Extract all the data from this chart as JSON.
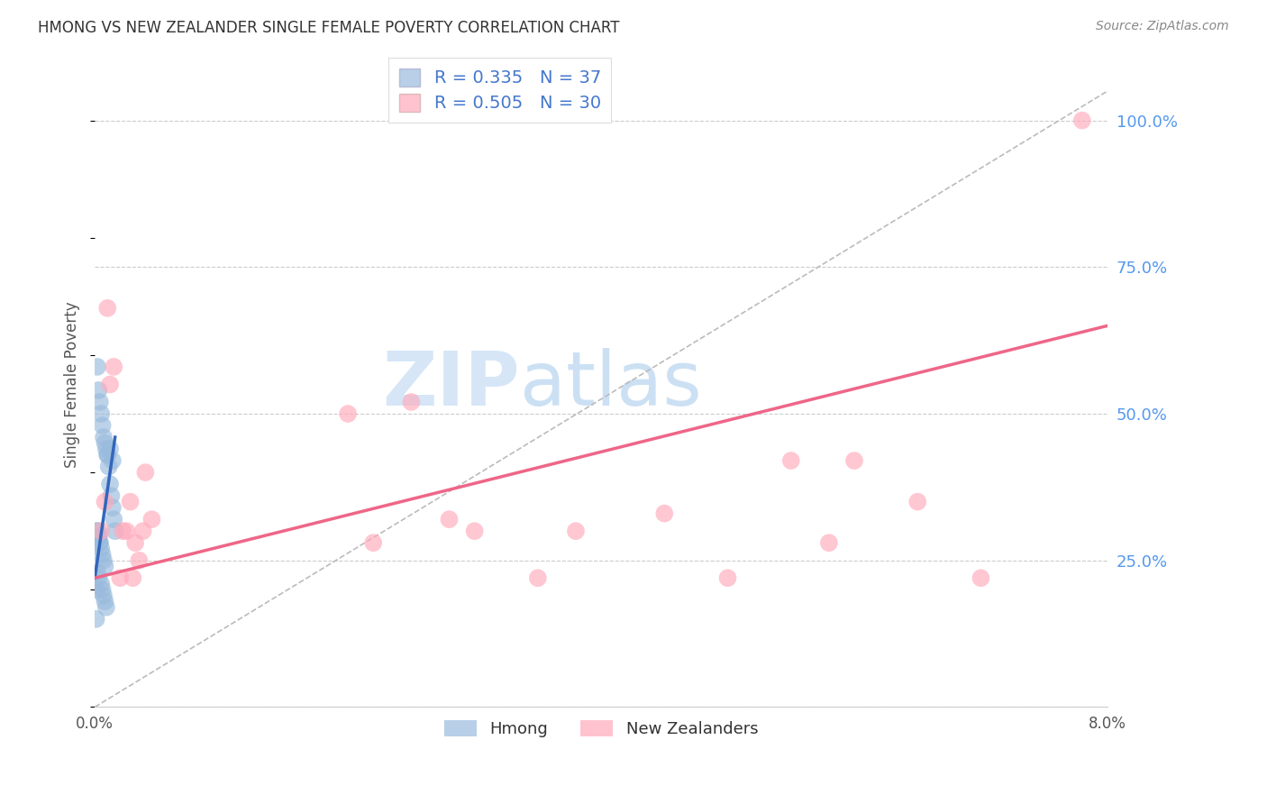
{
  "title": "HMONG VS NEW ZEALANDER SINGLE FEMALE POVERTY CORRELATION CHART",
  "source": "Source: ZipAtlas.com",
  "ylabel": "Single Female Poverty",
  "xlim": [
    0.0,
    0.08
  ],
  "ylim": [
    0.0,
    1.1
  ],
  "yticks_right": [
    0.25,
    0.5,
    0.75,
    1.0
  ],
  "yticklabels_right": [
    "25.0%",
    "50.0%",
    "75.0%",
    "100.0%"
  ],
  "hmong_color": "#99bbdd",
  "nz_color": "#ffaabb",
  "hmong_line_color": "#3366bb",
  "nz_line_color": "#ee6688",
  "legend_hmong": "R = 0.335   N = 37",
  "legend_nz": "R = 0.505   N = 30",
  "watermark_zip": "ZIP",
  "watermark_atlas": "atlas",
  "grid_color": "#cccccc",
  "hmong_x": [
    0.0002,
    0.0003,
    0.0004,
    0.0005,
    0.0006,
    0.0007,
    0.0008,
    0.0009,
    0.001,
    0.0011,
    0.0012,
    0.0013,
    0.0014,
    0.0015,
    0.0016,
    0.0002,
    0.0003,
    0.0004,
    0.0005,
    0.0006,
    0.0007,
    0.0008,
    0.0002,
    0.0003,
    0.0005,
    0.0006,
    0.0007,
    0.0008,
    0.0009,
    0.0002,
    0.0003,
    0.0004,
    0.001,
    0.0012,
    0.0014,
    0.0001,
    0.0001
  ],
  "hmong_y": [
    0.58,
    0.54,
    0.52,
    0.5,
    0.48,
    0.46,
    0.45,
    0.44,
    0.43,
    0.41,
    0.38,
    0.36,
    0.34,
    0.32,
    0.3,
    0.3,
    0.29,
    0.28,
    0.27,
    0.26,
    0.25,
    0.24,
    0.23,
    0.22,
    0.21,
    0.2,
    0.19,
    0.18,
    0.17,
    0.3,
    0.29,
    0.28,
    0.43,
    0.44,
    0.42,
    0.2,
    0.15
  ],
  "nz_x": [
    0.0005,
    0.0008,
    0.001,
    0.0012,
    0.0015,
    0.002,
    0.0022,
    0.0025,
    0.0028,
    0.003,
    0.0032,
    0.0035,
    0.0038,
    0.004,
    0.0045,
    0.02,
    0.022,
    0.025,
    0.028,
    0.03,
    0.035,
    0.038,
    0.045,
    0.05,
    0.055,
    0.058,
    0.06,
    0.065,
    0.07,
    0.078
  ],
  "nz_y": [
    0.3,
    0.35,
    0.68,
    0.55,
    0.58,
    0.22,
    0.3,
    0.3,
    0.35,
    0.22,
    0.28,
    0.25,
    0.3,
    0.4,
    0.32,
    0.5,
    0.28,
    0.52,
    0.32,
    0.3,
    0.22,
    0.3,
    0.33,
    0.22,
    0.42,
    0.28,
    0.42,
    0.35,
    0.22,
    1.0
  ],
  "hmong_trend_x": [
    0.0,
    0.0016
  ],
  "hmong_trend_y": [
    0.22,
    0.46
  ],
  "nz_trend_x": [
    0.0,
    0.08
  ],
  "nz_trend_y": [
    0.22,
    0.65
  ]
}
